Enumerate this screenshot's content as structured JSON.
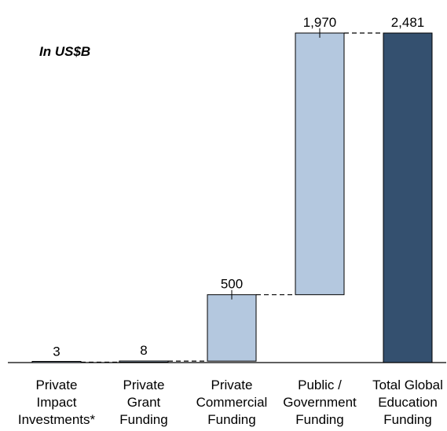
{
  "chart_data": {
    "type": "waterfall",
    "unit_note": "In US$B",
    "categories": [
      {
        "lines": [
          "Private",
          "Impact",
          "Investments*"
        ],
        "value_label": "3",
        "value": 3,
        "kind": "increment"
      },
      {
        "lines": [
          "Private",
          "Grant",
          "Funding"
        ],
        "value_label": "8",
        "value": 8,
        "kind": "increment"
      },
      {
        "lines": [
          "Private",
          "Commercial",
          "Funding"
        ],
        "value_label": "500",
        "value": 500,
        "kind": "increment"
      },
      {
        "lines": [
          "Public /",
          "Government",
          "Funding"
        ],
        "value_label": "1,970",
        "value": 1970,
        "kind": "increment"
      },
      {
        "lines": [
          "Total Global",
          "Education",
          "Funding"
        ],
        "value_label": "2,481",
        "value": 2481,
        "kind": "total"
      }
    ],
    "ylim": [
      0,
      2481
    ],
    "grid": false,
    "legend": false
  },
  "colors": {
    "increment_bar": "#b4c8df",
    "total_bar": "#34506f",
    "outline": "#000000"
  }
}
